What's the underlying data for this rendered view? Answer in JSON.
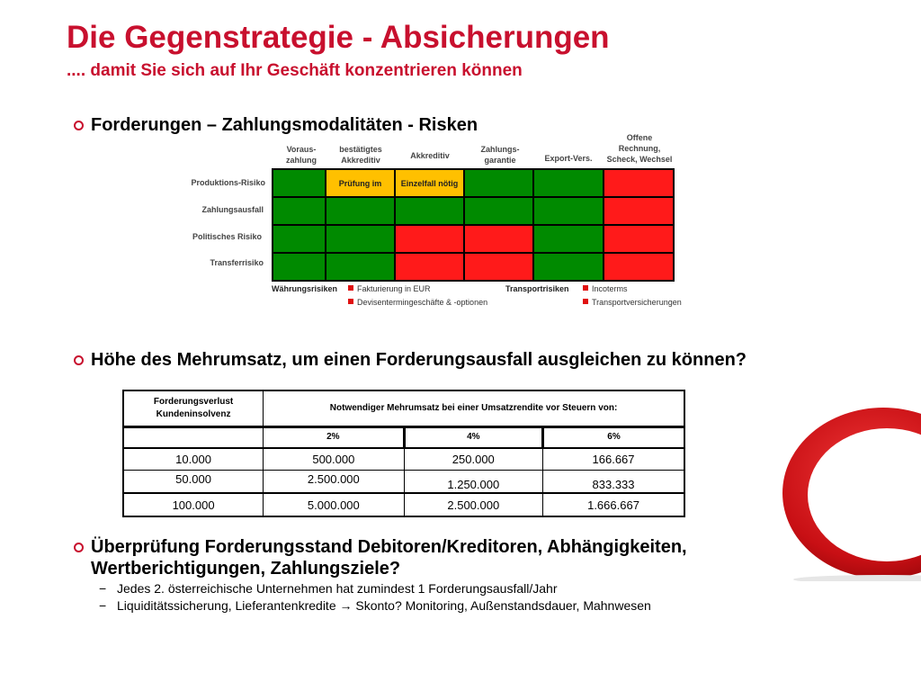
{
  "header": {
    "title": "Die Gegenstrategie - Absicherungen",
    "subtitle": ".... damit Sie sich auf Ihr Geschäft konzentrieren können"
  },
  "section1": {
    "bullet": "Forderungen – Zahlungsmodalitäten - Risken"
  },
  "matrix": {
    "columns": [
      "Voraus-\nzahlung",
      "bestätigtes\nAkkreditiv",
      "Akkreditiv",
      "Zahlungs-\ngarantie",
      "Export-Vers.",
      "Offene\nRechnung,\nScheck, Wechsel"
    ],
    "rows": [
      "Produktions-Risiko",
      "Zahlungsausfall",
      "Politisches Risiko",
      "Transferrisiko"
    ],
    "cell_colors": {
      "green": "#008a00",
      "red": "#ff1a1a",
      "yellow": "#ffc000"
    },
    "cells": [
      [
        "green",
        "yellow",
        "yellow",
        "green",
        "green",
        "red"
      ],
      [
        "green",
        "green",
        "green",
        "green",
        "green",
        "red"
      ],
      [
        "green",
        "green",
        "red",
        "red",
        "green",
        "red"
      ],
      [
        "green",
        "green",
        "red",
        "red",
        "green",
        "red"
      ]
    ],
    "cell_text": {
      "prufung": "Prüfung im",
      "einzelfall": "Einzelfall nötig"
    }
  },
  "legend": {
    "currency_label": "Währungsrisiken",
    "currency_items": [
      "Fakturierung in EUR",
      "Devisentermingeschäfte & -optionen"
    ],
    "transport_label": "Transportrisiken",
    "transport_items": [
      "Incoterms",
      "Transportversicherungen"
    ]
  },
  "section2": {
    "bullet": "Höhe des Mehrumsatz, um einen Forderungsausfall ausgleichen zu können?"
  },
  "revenue_table": {
    "header_left": "Forderungsverlust\nKundeninsolvenz",
    "header_right": "Notwendiger Mehrumsatz bei einer Umsatzrendite vor Steuern von:",
    "rates": [
      "2%",
      "4%",
      "6%"
    ],
    "rows": [
      [
        "10.000",
        "500.000",
        "250.000",
        "166.667"
      ],
      [
        "50.000",
        "2.500.000",
        "1.250.000",
        "833.333"
      ],
      [
        "100.000",
        "5.000.000",
        "2.500.000",
        "1.666.667"
      ]
    ]
  },
  "section3": {
    "bullet_line1": "Überprüfung Forderungsstand Debitoren/Kreditoren, Abhängigkeiten,",
    "bullet_line2": "Wertberichtigungen, Zahlungsziele?",
    "sub_items": [
      "Jedes 2. österreichische Unternehmen hat zumindest 1 Forderungsausfall/Jahr",
      "Liquiditätssicherung, Lieferantenkredite → Skonto? Monitoring, Außenstandsdauer, Mahnwesen"
    ],
    "dash": "−"
  },
  "brand": {
    "accent": "#c8102e",
    "logo_icon": "red-o-logo"
  }
}
